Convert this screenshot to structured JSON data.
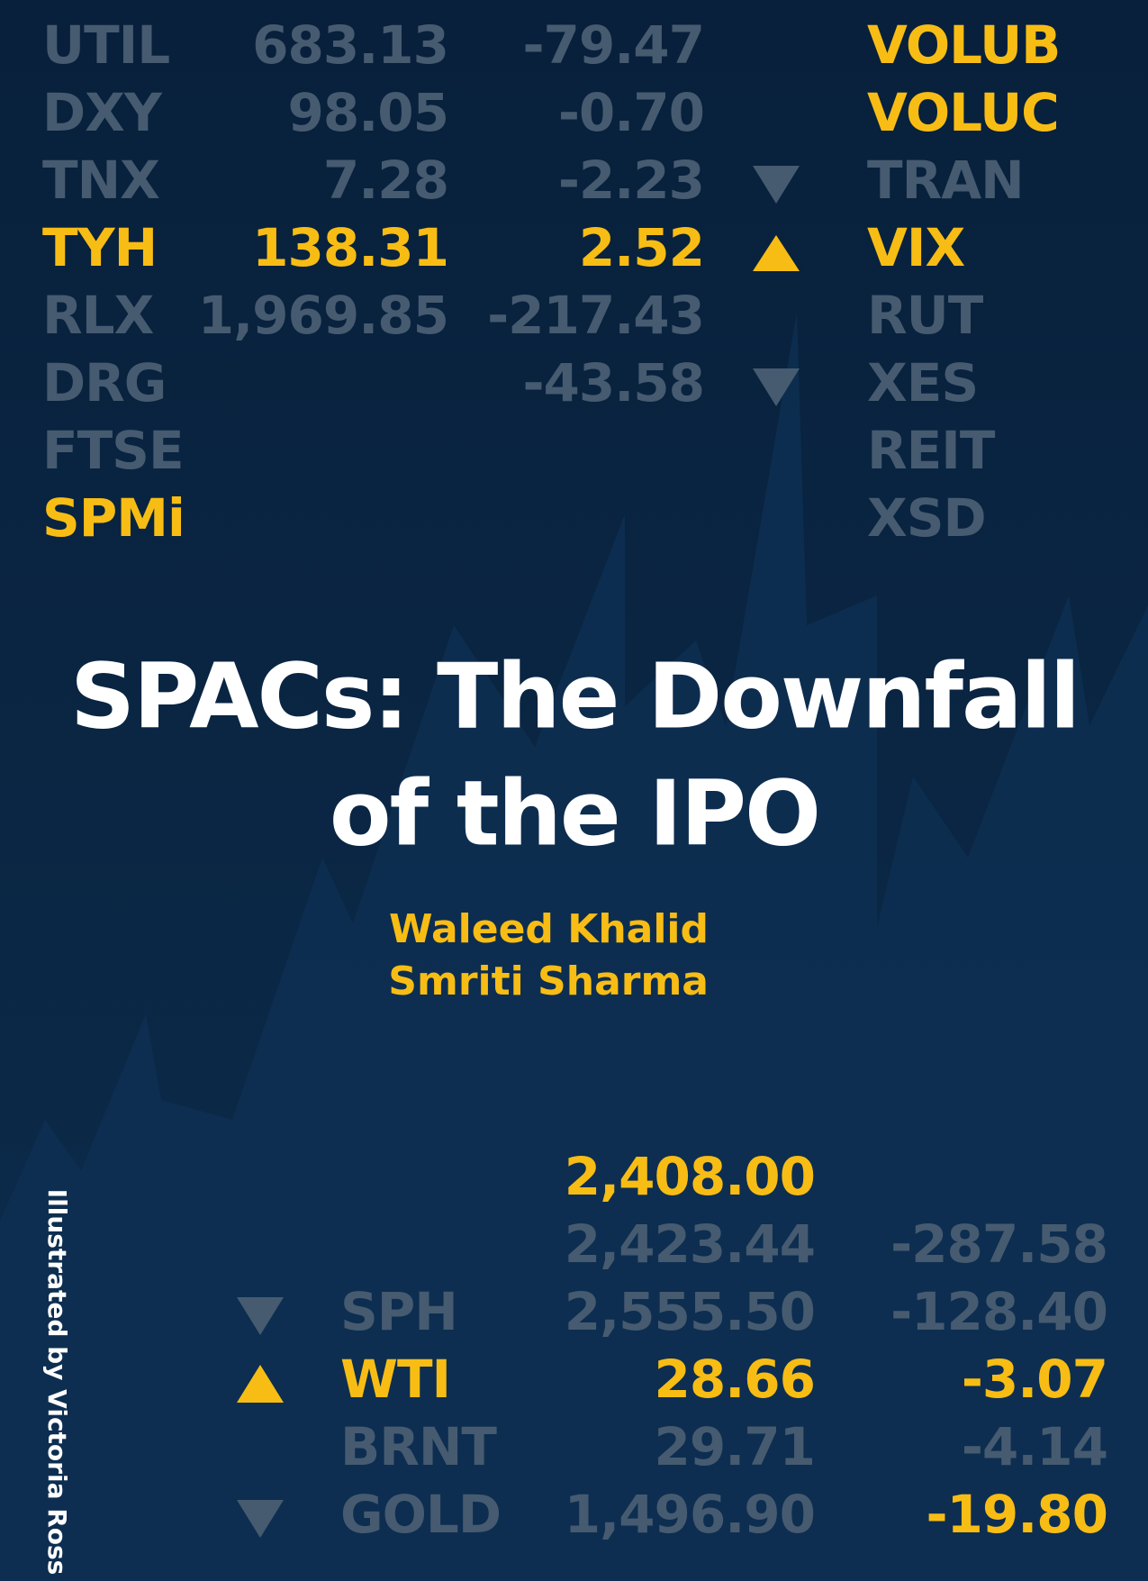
{
  "top_rows": [
    {
      "symbol": "UTIL",
      "price": "683.13",
      "change": "-79.47",
      "symbol_right": "VOLUB"
    },
    {
      "symbol": "DXY",
      "price": "98.05",
      "change": "-0.70",
      "symbol_right": "VOLUC"
    },
    {
      "symbol": "TNX",
      "price": "7.28",
      "change": "-2.23",
      "symbol_right": "TRAN"
    },
    {
      "symbol": "TYH",
      "price": "138.31",
      "change": "2.52",
      "symbol_right": "VIX"
    },
    {
      "symbol": "RLX",
      "price": "1,969.85",
      "change": "-217.43",
      "symbol_right": "RUT"
    },
    {
      "symbol": "DRG",
      "change": "-43.58",
      "symbol_right": "XES"
    },
    {
      "symbol": "FTSE",
      "symbol_right": "REIT"
    },
    {
      "symbol": "SPMi",
      "symbol_right": "XSD"
    }
  ],
  "title": {
    "line1": "SPACs: The Downfall",
    "line2": "of the IPO"
  },
  "authors": [
    "Waleed Khalid",
    "Smriti Sharma"
  ],
  "bottom_rows": [
    {
      "price": "2,408.00"
    },
    {
      "price": "2,423.44",
      "change": "-287.58"
    },
    {
      "symbol": "SPH",
      "price": "2,555.50",
      "change": "-128.40"
    },
    {
      "symbol": "WTI",
      "price": "28.66",
      "change": "-3.07"
    },
    {
      "symbol": "BRNT",
      "price": "29.71",
      "change": "-4.14"
    },
    {
      "symbol": "GOLD",
      "price": "1,496.90",
      "change": "-19.80"
    }
  ],
  "credit": "Illustrated by Victoria Ross"
}
